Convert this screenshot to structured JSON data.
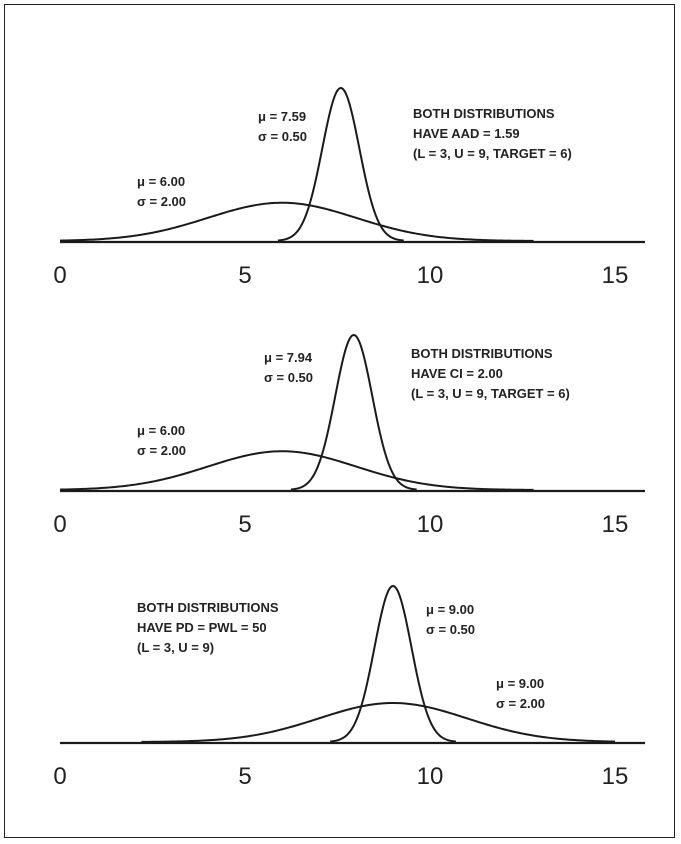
{
  "chart_data": [
    {
      "type": "line",
      "xlim": [
        0,
        15
      ],
      "x_ticks": [
        "0",
        "5",
        "10",
        "15"
      ],
      "series": [
        {
          "mu": 6.0,
          "sigma": 2.0,
          "label_mu": "μ = 6.00",
          "label_sigma": "σ = 2.00"
        },
        {
          "mu": 7.59,
          "sigma": 0.5,
          "label_mu": "μ = 7.59",
          "label_sigma": "σ = 0.50"
        }
      ],
      "annotation": [
        "BOTH DISTRIBUTIONS",
        "HAVE AAD = 1.59",
        "(L = 3, U = 9, TARGET = 6)"
      ]
    },
    {
      "type": "line",
      "xlim": [
        0,
        15
      ],
      "x_ticks": [
        "0",
        "5",
        "10",
        "15"
      ],
      "series": [
        {
          "mu": 6.0,
          "sigma": 2.0,
          "label_mu": "μ = 6.00",
          "label_sigma": "σ = 2.00"
        },
        {
          "mu": 7.94,
          "sigma": 0.5,
          "label_mu": "μ = 7.94",
          "label_sigma": "σ = 0.50"
        }
      ],
      "annotation": [
        "BOTH DISTRIBUTIONS",
        "HAVE CI = 2.00",
        "(L = 3, U = 9, TARGET = 6)"
      ]
    },
    {
      "type": "line",
      "xlim": [
        0,
        15
      ],
      "x_ticks": [
        "0",
        "5",
        "10",
        "15"
      ],
      "series": [
        {
          "mu": 9.0,
          "sigma": 0.5,
          "label_mu": "μ = 9.00",
          "label_sigma": "σ = 0.50"
        },
        {
          "mu": 9.0,
          "sigma": 2.0,
          "label_mu": "μ = 9.00",
          "label_sigma": "σ = 2.00"
        }
      ],
      "annotation": [
        "BOTH DISTRIBUTIONS",
        "HAVE PD = PWL = 50",
        "(L = 3, U = 9)"
      ]
    }
  ]
}
